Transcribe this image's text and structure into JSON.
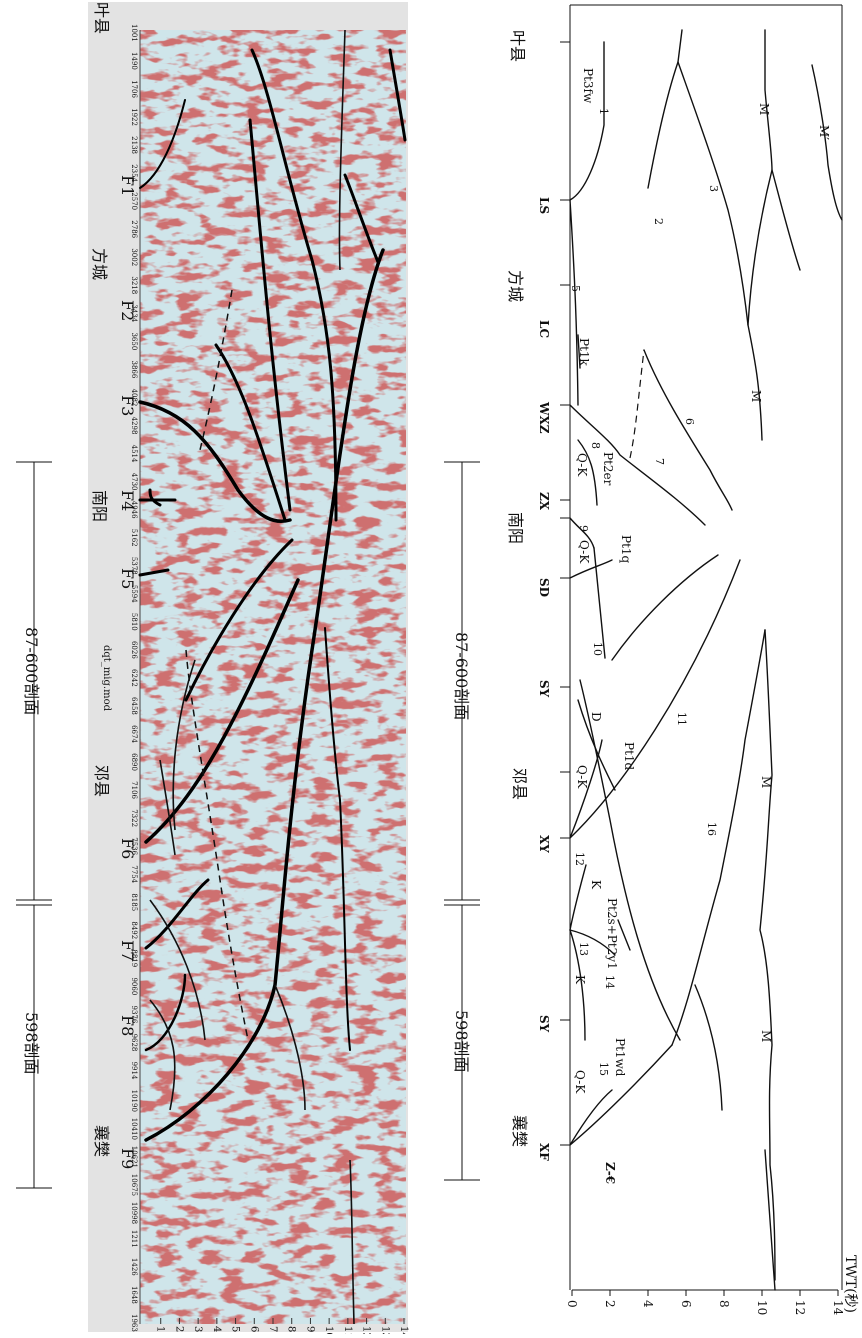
{
  "left_panel": {
    "places": [
      "叶县",
      "方城",
      "南阳",
      "邓县",
      "襄樊"
    ],
    "faults": [
      "F1",
      "F2",
      "F3",
      "F4",
      "F5",
      "F6",
      "F7",
      "F8",
      "F9"
    ],
    "section_labels": [
      "598剖面",
      "87-600剖面"
    ],
    "file_label": "dqt_mig.mod",
    "trace_numbers": [
      "1963",
      "1648",
      "1426",
      "1211",
      "10998",
      "10675",
      "10621",
      "10410",
      "10190",
      "9914",
      "9628",
      "9376",
      "9060",
      "8819",
      "8492",
      "8185",
      "7754",
      "7536",
      "7322",
      "7106",
      "6890",
      "6674",
      "6458",
      "6242",
      "6026",
      "5810",
      "5594",
      "5378",
      "5162",
      "4946",
      "4730",
      "4514",
      "4298",
      "4082",
      "3866",
      "3650",
      "3434",
      "3218",
      "3002",
      "2786",
      "2570",
      "2354",
      "2138",
      "1922",
      "1706",
      "1490",
      "1001"
    ],
    "depth_ticks": [
      "1",
      "2",
      "3",
      "4",
      "5",
      "6",
      "7",
      "8",
      "9",
      "10",
      "11",
      "12",
      "13",
      "14"
    ]
  },
  "right_panel": {
    "places": [
      "叶县",
      "方城",
      "南阳",
      "邓县",
      "襄樊"
    ],
    "stations": [
      "LS",
      "LC",
      "WXZ",
      "ZX",
      "SD",
      "SY",
      "XY",
      "SY",
      "XF"
    ],
    "formations": [
      "Pt3fw",
      "Pt1k",
      "Pt2er",
      "Q-K",
      "Q-K",
      "Pt1q",
      "Pt1d",
      "D",
      "Q-K",
      "K",
      "K",
      "Pt2s+Pt2y1",
      "Pt1wd",
      "Q-K",
      "Z-€"
    ],
    "line_numbers": [
      "1",
      "2",
      "3",
      "5",
      "6",
      "7",
      "8",
      "9",
      "10",
      "11",
      "12",
      "13",
      "14",
      "15",
      "16"
    ],
    "moho_labels": [
      "M",
      "M′",
      "M",
      "M",
      "M"
    ],
    "section_labels": [
      "87-600剖面",
      "598剖面"
    ],
    "axis_title": "TWT(秒)",
    "axis_ticks": [
      "0",
      "2",
      "4",
      "6",
      "8",
      "10",
      "12",
      "14"
    ]
  },
  "colors": {
    "seismic_bg": "#cfe5ea",
    "seismic_red": "#9a2a2a",
    "line": "#111111"
  }
}
